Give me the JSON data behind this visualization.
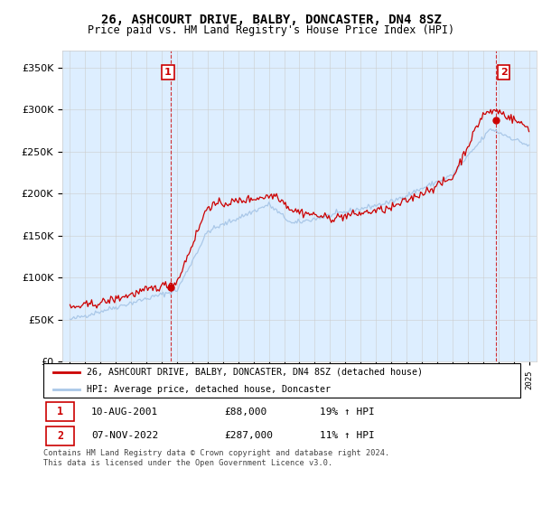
{
  "title": "26, ASHCOURT DRIVE, BALBY, DONCASTER, DN4 8SZ",
  "subtitle": "Price paid vs. HM Land Registry's House Price Index (HPI)",
  "legend_line1": "26, ASHCOURT DRIVE, BALBY, DONCASTER, DN4 8SZ (detached house)",
  "legend_line2": "HPI: Average price, detached house, Doncaster",
  "sale1_date": "10-AUG-2001",
  "sale1_price": "£88,000",
  "sale1_hpi": "19% ↑ HPI",
  "sale2_date": "07-NOV-2022",
  "sale2_price": "£287,000",
  "sale2_hpi": "11% ↑ HPI",
  "footer": "Contains HM Land Registry data © Crown copyright and database right 2024.\nThis data is licensed under the Open Government Licence v3.0.",
  "red_color": "#cc0000",
  "blue_color": "#aac8e8",
  "bg_color": "#ddeeff",
  "dashed_color": "#cc0000",
  "ylim_min": 0,
  "ylim_max": 370000,
  "yticks": [
    0,
    50000,
    100000,
    150000,
    200000,
    250000,
    300000,
    350000
  ],
  "sale1_year": 2001.6,
  "sale1_value": 88000,
  "sale2_year": 2022.85,
  "sale2_value": 287000,
  "xmin": 1994.5,
  "xmax": 2025.5
}
